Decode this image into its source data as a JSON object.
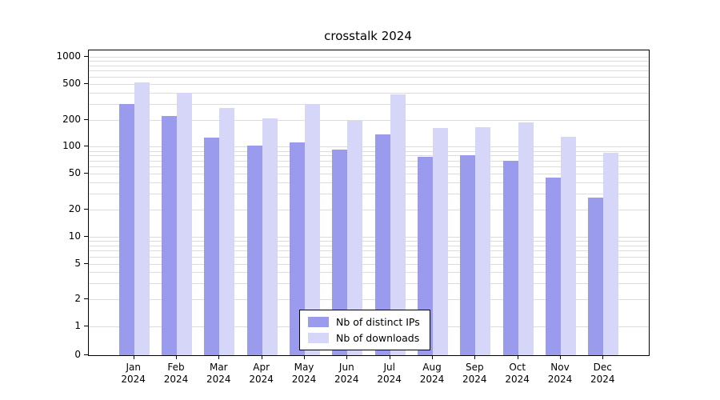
{
  "chart_data": {
    "type": "bar",
    "title": "crosstalk 2024",
    "categories": [
      "Jan",
      "Feb",
      "Mar",
      "Apr",
      "May",
      "Jun",
      "Jul",
      "Aug",
      "Sep",
      "Oct",
      "Nov",
      "Dec"
    ],
    "year": "2024",
    "series": [
      {
        "name": "Nb of distinct IPs",
        "color": "#9b9bee",
        "values": [
          300,
          220,
          125,
          103,
          112,
          92,
          138,
          78,
          80,
          70,
          45,
          27
        ]
      },
      {
        "name": "Nb of downloads",
        "color": "#d6d6f8",
        "values": [
          520,
          400,
          270,
          205,
          300,
          195,
          380,
          160,
          165,
          185,
          130,
          85
        ]
      }
    ],
    "y_axis": {
      "scale": "log",
      "tick_labels": [
        "1000",
        "500",
        "200",
        "100",
        "50",
        "20",
        "10",
        "5",
        "2",
        "1",
        "0"
      ],
      "tick_values": [
        1000,
        500,
        200,
        100,
        50,
        20,
        10,
        5,
        2,
        1,
        0
      ],
      "minor_gridlines": [
        1,
        2,
        3,
        4,
        5,
        6,
        7,
        8,
        9,
        10,
        20,
        30,
        40,
        50,
        60,
        70,
        80,
        90,
        100,
        200,
        300,
        400,
        500,
        600,
        700,
        800,
        900,
        1000
      ]
    },
    "grid": "horizontal",
    "legend_position": "bottom-center"
  }
}
